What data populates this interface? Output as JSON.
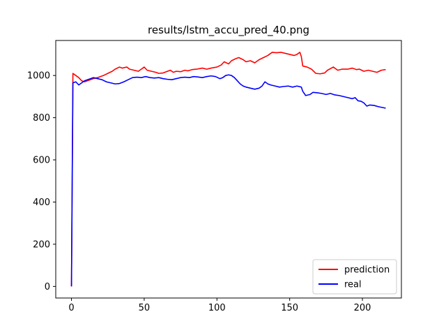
{
  "chart_data": {
    "type": "line",
    "title": "results/lstm_accu_pred_40.png",
    "xlabel": "",
    "ylabel": "",
    "xlim": [
      -10.8,
      226.8
    ],
    "ylim": [
      -55,
      1166
    ],
    "xticks": [
      0,
      50,
      100,
      150,
      200
    ],
    "yticks": [
      0,
      200,
      400,
      600,
      800,
      1000
    ],
    "grid": false,
    "legend_position": "lower-right",
    "series": [
      {
        "name": "prediction",
        "color": "#ff0000",
        "points": [
          [
            0,
            0
          ],
          [
            1,
            1010
          ],
          [
            3,
            1000
          ],
          [
            5,
            990
          ],
          [
            7,
            975
          ],
          [
            9,
            970
          ],
          [
            11,
            975
          ],
          [
            13,
            980
          ],
          [
            15,
            985
          ],
          [
            18,
            990
          ],
          [
            20,
            995
          ],
          [
            22,
            1000
          ],
          [
            25,
            1010
          ],
          [
            28,
            1020
          ],
          [
            30,
            1030
          ],
          [
            33,
            1040
          ],
          [
            35,
            1035
          ],
          [
            38,
            1040
          ],
          [
            40,
            1030
          ],
          [
            43,
            1025
          ],
          [
            46,
            1020
          ],
          [
            48,
            1030
          ],
          [
            50,
            1040
          ],
          [
            52,
            1025
          ],
          [
            55,
            1020
          ],
          [
            58,
            1015
          ],
          [
            60,
            1010
          ],
          [
            63,
            1012
          ],
          [
            66,
            1020
          ],
          [
            68,
            1025
          ],
          [
            70,
            1015
          ],
          [
            72,
            1020
          ],
          [
            75,
            1018
          ],
          [
            78,
            1025
          ],
          [
            80,
            1022
          ],
          [
            83,
            1028
          ],
          [
            86,
            1030
          ],
          [
            90,
            1035
          ],
          [
            93,
            1030
          ],
          [
            96,
            1035
          ],
          [
            100,
            1040
          ],
          [
            103,
            1050
          ],
          [
            105,
            1065
          ],
          [
            108,
            1055
          ],
          [
            110,
            1070
          ],
          [
            113,
            1080
          ],
          [
            115,
            1085
          ],
          [
            118,
            1075
          ],
          [
            120,
            1065
          ],
          [
            123,
            1070
          ],
          [
            126,
            1060
          ],
          [
            129,
            1075
          ],
          [
            132,
            1085
          ],
          [
            135,
            1095
          ],
          [
            138,
            1110
          ],
          [
            141,
            1108
          ],
          [
            144,
            1110
          ],
          [
            147,
            1105
          ],
          [
            150,
            1100
          ],
          [
            153,
            1095
          ],
          [
            155,
            1100
          ],
          [
            157,
            1110
          ],
          [
            158,
            1090
          ],
          [
            159,
            1045
          ],
          [
            162,
            1040
          ],
          [
            165,
            1030
          ],
          [
            168,
            1010
          ],
          [
            171,
            1008
          ],
          [
            174,
            1012
          ],
          [
            176,
            1025
          ],
          [
            180,
            1040
          ],
          [
            183,
            1025
          ],
          [
            186,
            1030
          ],
          [
            190,
            1030
          ],
          [
            193,
            1035
          ],
          [
            196,
            1028
          ],
          [
            198,
            1030
          ],
          [
            201,
            1020
          ],
          [
            204,
            1025
          ],
          [
            207,
            1020
          ],
          [
            210,
            1015
          ],
          [
            213,
            1025
          ],
          [
            216,
            1028
          ]
        ]
      },
      {
        "name": "real",
        "color": "#0000ff",
        "points": [
          [
            0,
            0
          ],
          [
            1,
            965
          ],
          [
            3,
            970
          ],
          [
            5,
            955
          ],
          [
            7,
            965
          ],
          [
            9,
            975
          ],
          [
            11,
            980
          ],
          [
            13,
            985
          ],
          [
            15,
            990
          ],
          [
            18,
            985
          ],
          [
            21,
            980
          ],
          [
            24,
            970
          ],
          [
            27,
            965
          ],
          [
            30,
            960
          ],
          [
            33,
            962
          ],
          [
            36,
            970
          ],
          [
            39,
            980
          ],
          [
            42,
            990
          ],
          [
            45,
            992
          ],
          [
            48,
            990
          ],
          [
            51,
            995
          ],
          [
            54,
            990
          ],
          [
            57,
            988
          ],
          [
            60,
            990
          ],
          [
            63,
            985
          ],
          [
            66,
            982
          ],
          [
            69,
            980
          ],
          [
            72,
            985
          ],
          [
            75,
            990
          ],
          [
            78,
            992
          ],
          [
            81,
            990
          ],
          [
            84,
            995
          ],
          [
            87,
            993
          ],
          [
            90,
            990
          ],
          [
            93,
            995
          ],
          [
            96,
            998
          ],
          [
            99,
            995
          ],
          [
            102,
            985
          ],
          [
            104,
            990
          ],
          [
            106,
            1000
          ],
          [
            108,
            1003
          ],
          [
            110,
            1000
          ],
          [
            112,
            990
          ],
          [
            114,
            975
          ],
          [
            116,
            960
          ],
          [
            118,
            950
          ],
          [
            120,
            945
          ],
          [
            123,
            940
          ],
          [
            126,
            935
          ],
          [
            129,
            940
          ],
          [
            131,
            950
          ],
          [
            133,
            970
          ],
          [
            135,
            960
          ],
          [
            137,
            955
          ],
          [
            140,
            950
          ],
          [
            143,
            945
          ],
          [
            146,
            948
          ],
          [
            149,
            950
          ],
          [
            152,
            945
          ],
          [
            155,
            950
          ],
          [
            158,
            945
          ],
          [
            159,
            925
          ],
          [
            161,
            905
          ],
          [
            164,
            910
          ],
          [
            166,
            920
          ],
          [
            169,
            918
          ],
          [
            172,
            915
          ],
          [
            175,
            910
          ],
          [
            178,
            915
          ],
          [
            181,
            908
          ],
          [
            184,
            905
          ],
          [
            187,
            900
          ],
          [
            190,
            895
          ],
          [
            193,
            890
          ],
          [
            195,
            895
          ],
          [
            197,
            880
          ],
          [
            199,
            878
          ],
          [
            201,
            870
          ],
          [
            203,
            855
          ],
          [
            205,
            860
          ],
          [
            208,
            858
          ],
          [
            211,
            852
          ],
          [
            214,
            848
          ],
          [
            216,
            845
          ]
        ]
      }
    ]
  }
}
